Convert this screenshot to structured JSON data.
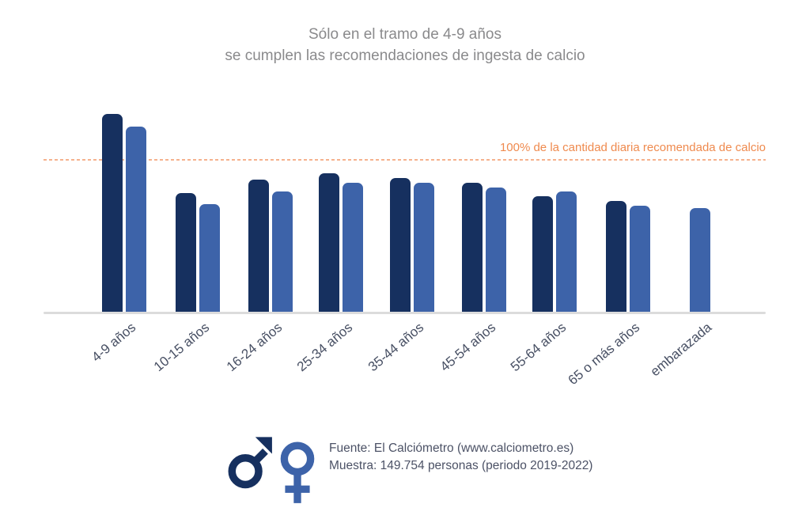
{
  "title": {
    "line1": "Sólo en el tramo de 4-9 años",
    "line2": "se cumplen las recomendaciones de ingesta de calcio"
  },
  "reference_line": {
    "label": "100% de la cantidad diaria recomendada de calcio",
    "value_pct": 100
  },
  "chart_data": {
    "type": "bar",
    "title": "Sólo en el tramo de 4-9 años se cumplen las recomendaciones de ingesta de calcio",
    "ylabel": "% de la cantidad diaria recomendada de calcio",
    "categories": [
      "4-9 años",
      "10-15 años",
      "16-24 años",
      "25-34 años",
      "35-44 años",
      "45-54 años",
      "55-64 años",
      "65 o más años",
      "embarazada"
    ],
    "series": [
      {
        "name": "hombres",
        "color": "#16305f",
        "values": [
          130,
          78,
          87,
          91,
          88,
          85,
          76,
          73,
          null
        ]
      },
      {
        "name": "mujeres",
        "color": "#3d63a9",
        "values": [
          122,
          71,
          79,
          85,
          85,
          82,
          79,
          70,
          68
        ]
      }
    ],
    "reference_value": 100,
    "reference_label": "100% de la cantidad diaria recomendada de calcio",
    "grid": false,
    "legend_position": "bottom-left-symbols"
  },
  "footer": {
    "male_icon": "mars-symbol",
    "female_icon": "venus-symbol",
    "source": "Fuente: El Calciómetro (www.calciometro.es)",
    "sample": "Muestra: 149.754 personas (periodo 2019-2022)"
  },
  "colors": {
    "male_bar": "#16305f",
    "female_bar": "#3d63a9",
    "reference_text": "#ef8a4e",
    "reference_dash": "#f4a87f",
    "axis_line": "#dcdcdc",
    "title_text": "#8a8a8c",
    "label_text": "#474f63"
  }
}
